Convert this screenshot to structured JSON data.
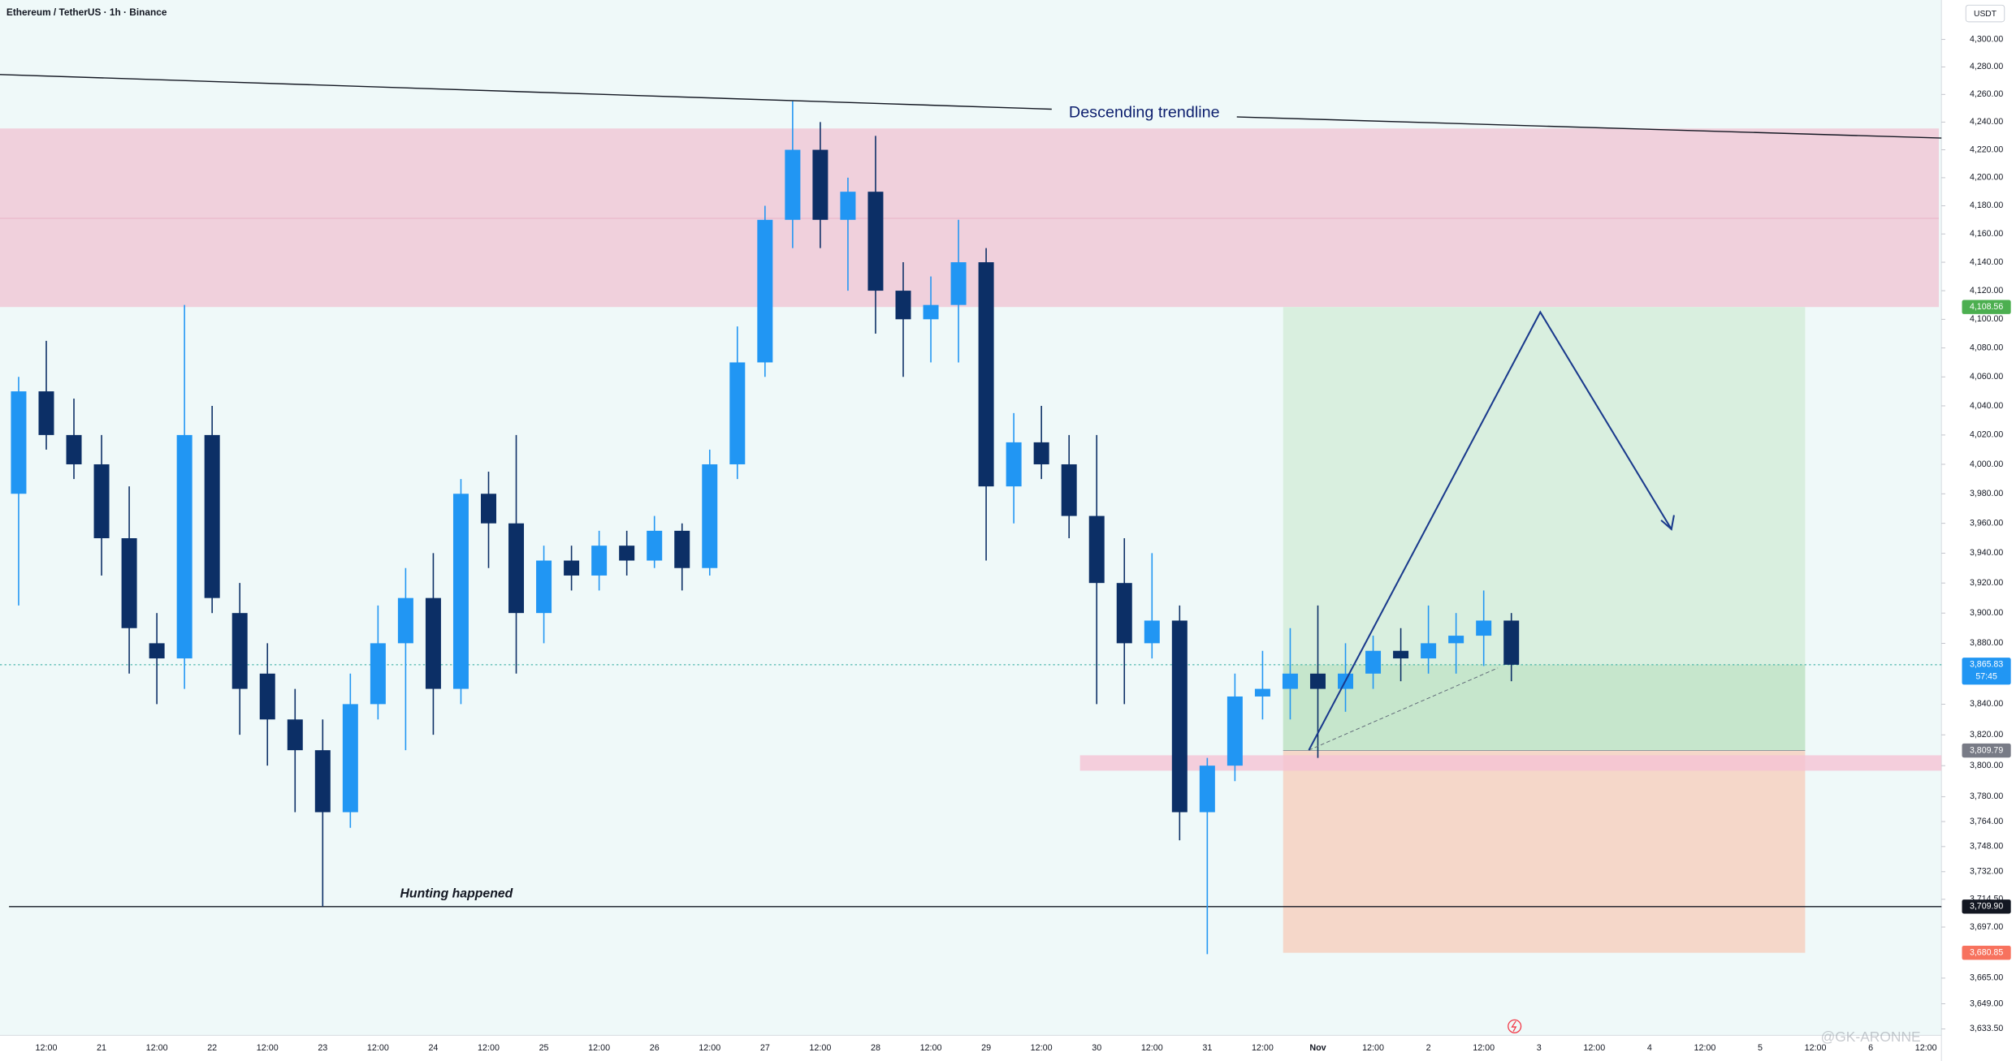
{
  "header": {
    "title": "Ethereum / TetherUS · 1h · Binance",
    "currency": "USDT"
  },
  "chart_data": {
    "type": "candlestick",
    "categories": [
      null,
      "12:00",
      null,
      "21",
      null,
      "12:00",
      null,
      "22",
      null,
      "12:00",
      null,
      "23",
      null,
      "12:00",
      null,
      "24",
      null,
      "12:00",
      null,
      "25",
      null,
      "12:00",
      null,
      "26",
      null,
      "12:00",
      null,
      "27",
      null,
      "12:00",
      null,
      "28",
      null,
      "12:00",
      null,
      "29",
      null,
      "12:00",
      null,
      "30",
      null,
      "12:00",
      null,
      "31",
      null,
      "12:00",
      null,
      "Nov",
      null,
      "12:00",
      null,
      "2",
      null,
      "12:00",
      null,
      "3",
      null,
      "12:00",
      null,
      "4",
      null,
      "12:00",
      null,
      "5",
      null,
      "12:00",
      null,
      "6",
      null,
      "12:00"
    ],
    "open": [
      3980,
      4050,
      4020,
      4000,
      3950,
      3880,
      3870,
      4020,
      3900,
      3860,
      3830,
      3810,
      3770,
      3840,
      3880,
      3910,
      3850,
      3980,
      3960,
      3900,
      3935,
      3925,
      3945,
      3935,
      3955,
      3930,
      4000,
      4070,
      4170,
      4220,
      4170,
      4190,
      4120,
      4100,
      4110,
      4140,
      3985,
      4015,
      4000,
      3965,
      3920,
      3880,
      3895,
      3770,
      3800,
      3845,
      3850,
      3860,
      3850,
      3860,
      3875,
      3870,
      3880,
      3885,
      3895,
      null,
      null,
      null,
      null,
      null,
      null,
      null,
      null,
      null,
      null,
      null,
      null,
      null,
      null,
      null
    ],
    "high": [
      4060,
      4085,
      4045,
      4020,
      3985,
      3900,
      4110,
      4040,
      3920,
      3880,
      3850,
      3830,
      3860,
      3905,
      3930,
      3940,
      3990,
      3995,
      4020,
      3945,
      3945,
      3955,
      3955,
      3965,
      3960,
      4010,
      4095,
      4180,
      4255,
      4240,
      4200,
      4230,
      4140,
      4130,
      4170,
      4150,
      4035,
      4040,
      4020,
      4020,
      3950,
      3940,
      3905,
      3805,
      3860,
      3875,
      3890,
      3905,
      3880,
      3885,
      3890,
      3905,
      3900,
      3915,
      3900,
      null,
      null,
      null,
      null,
      null,
      null,
      null,
      null,
      null,
      null,
      null,
      null,
      null,
      null,
      null
    ],
    "low": [
      3905,
      4010,
      3990,
      3925,
      3860,
      3840,
      3850,
      3900,
      3820,
      3800,
      3770,
      3710,
      3760,
      3830,
      3810,
      3820,
      3840,
      3930,
      3860,
      3880,
      3915,
      3915,
      3925,
      3930,
      3915,
      3925,
      3990,
      4060,
      4150,
      4150,
      4120,
      4090,
      4060,
      4070,
      4070,
      3935,
      3960,
      3990,
      3950,
      3840,
      3840,
      3870,
      3752,
      3680,
      3790,
      3830,
      3830,
      3805,
      3835,
      3850,
      3855,
      3860,
      3860,
      3865,
      3855,
      null,
      null,
      null,
      null,
      null,
      null,
      null,
      null,
      null,
      null,
      null,
      null,
      null,
      null,
      null
    ],
    "close": [
      4050,
      4020,
      4000,
      3950,
      3890,
      3870,
      4020,
      3910,
      3850,
      3830,
      3810,
      3770,
      3840,
      3880,
      3910,
      3850,
      3980,
      3960,
      3900,
      3935,
      3925,
      3945,
      3935,
      3955,
      3930,
      4000,
      4070,
      4170,
      4220,
      4170,
      4190,
      4120,
      4100,
      4110,
      4140,
      3985,
      4015,
      4000,
      3965,
      3920,
      3880,
      3895,
      3770,
      3800,
      3845,
      3850,
      3860,
      3850,
      3860,
      3875,
      3870,
      3880,
      3885,
      3895,
      3865.83,
      null,
      null,
      null,
      null,
      null,
      null,
      null,
      null,
      null,
      null,
      null,
      null,
      null,
      null,
      null
    ],
    "up_color": "#2196f3",
    "down_color": "#0c2f66",
    "ylim": [
      3629.5,
      4329
    ],
    "log_scale": true,
    "grid": false,
    "yticks": [
      {
        "value": 4300,
        "label": "4,300.00"
      },
      {
        "value": 4280,
        "label": "4,280.00"
      },
      {
        "value": 4260,
        "label": "4,260.00"
      },
      {
        "value": 4240,
        "label": "4,240.00"
      },
      {
        "value": 4220,
        "label": "4,220.00"
      },
      {
        "value": 4200,
        "label": "4,200.00"
      },
      {
        "value": 4180,
        "label": "4,180.00"
      },
      {
        "value": 4160,
        "label": "4,160.00"
      },
      {
        "value": 4140,
        "label": "4,140.00"
      },
      {
        "value": 4120,
        "label": "4,120.00"
      },
      {
        "value": 4100,
        "label": "4,100.00"
      },
      {
        "value": 4080,
        "label": "4,080.00"
      },
      {
        "value": 4060,
        "label": "4,060.00"
      },
      {
        "value": 4040,
        "label": "4,040.00"
      },
      {
        "value": 4020,
        "label": "4,020.00"
      },
      {
        "value": 4000,
        "label": "4,000.00"
      },
      {
        "value": 3980,
        "label": "3,980.00"
      },
      {
        "value": 3960,
        "label": "3,960.00"
      },
      {
        "value": 3940,
        "label": "3,940.00"
      },
      {
        "value": 3920,
        "label": "3,920.00"
      },
      {
        "value": 3900,
        "label": "3,900.00"
      },
      {
        "value": 3880,
        "label": "3,880.00"
      },
      {
        "value": 3840,
        "label": "3,840.00"
      },
      {
        "value": 3820,
        "label": "3,820.00"
      },
      {
        "value": 3800,
        "label": "3,800.00"
      },
      {
        "value": 3780,
        "label": "3,780.00"
      },
      {
        "value": 3764,
        "label": "3,764.00"
      },
      {
        "value": 3748,
        "label": "3,748.00"
      },
      {
        "value": 3732,
        "label": "3,732.00"
      },
      {
        "value": 3714.5,
        "label": "3,714.50"
      },
      {
        "value": 3697,
        "label": "3,697.00"
      },
      {
        "value": 3665,
        "label": "3,665.00"
      },
      {
        "value": 3649,
        "label": "3,649.00"
      },
      {
        "value": 3633.5,
        "label": "3,633.50"
      }
    ],
    "annotations": [
      "Descending trendline",
      "Hunting happened"
    ],
    "price_tags": [
      {
        "value": 4108.56,
        "label": "4,108.56",
        "color": "#4caf50"
      },
      {
        "value": 3865.83,
        "label": "3,865.83",
        "color": "#2196f3",
        "countdown": "57:45"
      },
      {
        "value": 3809.79,
        "label": "3,809.79",
        "color": "#787b86"
      },
      {
        "value": 3709.9,
        "label": "3,709.90",
        "color": "#131722"
      },
      {
        "value": 3680.85,
        "label": "3,680.85",
        "color": "#f7725e"
      }
    ],
    "watermark": "@GK-ARONNE"
  }
}
